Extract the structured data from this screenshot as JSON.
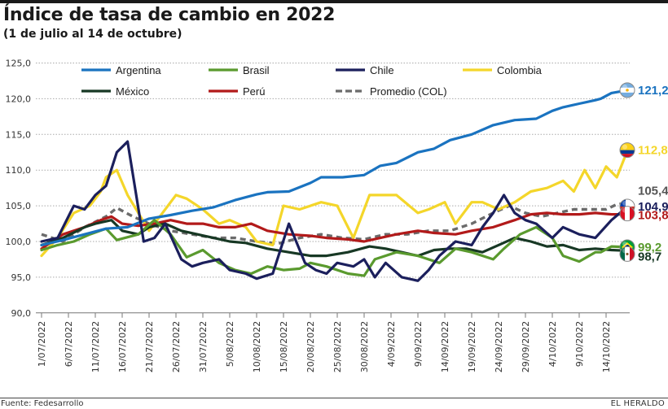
{
  "header": {
    "title": "Índice de tasa de cambio en 2022",
    "subtitle": "(1 de julio al 14 de octubre)"
  },
  "footer": {
    "source": "Fuente: Fedesarrollo",
    "brand": "EL HERALDO"
  },
  "chart_data": {
    "type": "line",
    "title": "Índice de tasa de cambio en 2022",
    "subtitle": "(1 de julio al 14 de octubre)",
    "xlabel": "",
    "ylabel": "",
    "ylim": [
      90,
      125
    ],
    "yticks": [
      90,
      95,
      100,
      105,
      110,
      115,
      120,
      125
    ],
    "ytick_labels": [
      "90,0",
      "95,0",
      "100,0",
      "105,0",
      "110,0",
      "115,0",
      "120,0",
      "125,0"
    ],
    "grid": "horizontal-dotted",
    "x_unit": "days since 1/07/2022",
    "xlim": [
      0,
      109
    ],
    "xticks": [
      0,
      5,
      10,
      15,
      20,
      25,
      30,
      35,
      40,
      45,
      50,
      55,
      60,
      65,
      70,
      75,
      80,
      85,
      90,
      95,
      100,
      105
    ],
    "xtick_labels": [
      "1/07/2022",
      "6/07/2022",
      "11/07/2022",
      "16/07/2022",
      "21/07/2022",
      "26/07/2022",
      "31/07/2022",
      "5/08/2022",
      "10/08/2022",
      "15/08/2022",
      "20/08/2022",
      "25/08/2022",
      "30/08/2022",
      "4/09/2022",
      "9/09/2022",
      "14/09/2022",
      "19/09/2022",
      "24/09/2022",
      "29/09/2022",
      "4/10/2022",
      "9/10/2022",
      "14/10/2022"
    ],
    "legend_position": "top",
    "series": [
      {
        "name": "Argentina",
        "color": "#1a73c0",
        "dash": false,
        "end_label": "121,2",
        "flag": "argentina",
        "x": [
          0,
          4,
          8,
          12,
          16,
          20,
          24,
          28,
          32,
          36,
          40,
          42,
          46,
          50,
          52,
          56,
          60,
          63,
          66,
          70,
          73,
          76,
          80,
          84,
          88,
          92,
          95,
          97,
          100,
          103,
          104,
          106,
          109
        ],
        "values": [
          99.5,
          100.2,
          101.0,
          101.8,
          102.0,
          103.2,
          103.7,
          104.3,
          104.8,
          105.8,
          106.6,
          106.9,
          107.0,
          108.2,
          109.0,
          109.0,
          109.3,
          110.6,
          111.0,
          112.5,
          113.0,
          114.2,
          115.0,
          116.3,
          117.0,
          117.2,
          118.3,
          118.8,
          119.3,
          119.8,
          120.0,
          120.8,
          121.2
        ]
      },
      {
        "name": "Brasil",
        "color": "#5a9a2e",
        "dash": false,
        "end_label": "99,2",
        "flag": "brasil",
        "x": [
          0,
          3,
          6,
          9,
          12,
          14,
          18,
          21,
          24,
          27,
          30,
          33,
          36,
          39,
          42,
          45,
          48,
          50,
          53,
          57,
          60,
          62,
          66,
          70,
          74,
          77,
          80,
          84,
          86,
          89,
          92,
          95,
          97,
          100,
          103,
          104,
          106,
          109
        ],
        "values": [
          98.8,
          99.5,
          100.0,
          101.0,
          101.8,
          100.2,
          101.0,
          103.0,
          101.0,
          97.8,
          98.8,
          97.0,
          96.0,
          95.5,
          96.5,
          96.0,
          96.2,
          97.0,
          96.5,
          95.5,
          95.2,
          97.5,
          98.5,
          98.0,
          97.0,
          99.0,
          98.5,
          97.5,
          99.0,
          101.0,
          102.0,
          100.5,
          98.0,
          97.2,
          98.5,
          98.5,
          99.3,
          99.2
        ]
      },
      {
        "name": "Chile",
        "color": "#1b1f5c",
        "dash": false,
        "end_label": "104,9",
        "flag": "chile",
        "x": [
          0,
          3,
          6,
          8,
          10,
          12,
          14,
          16,
          19,
          21,
          23,
          26,
          28,
          30,
          33,
          35,
          38,
          40,
          43,
          46,
          49,
          51,
          53,
          55,
          58,
          60,
          62,
          64,
          67,
          70,
          72,
          74,
          77,
          80,
          82,
          84,
          86,
          88,
          90,
          92,
          95,
          97,
          100,
          103,
          106,
          109
        ],
        "values": [
          100.0,
          100.5,
          105.0,
          104.5,
          106.5,
          107.8,
          112.5,
          114.0,
          100.0,
          100.5,
          102.5,
          97.5,
          96.5,
          97.0,
          97.5,
          96.0,
          95.5,
          94.8,
          95.5,
          102.5,
          97.0,
          96.0,
          95.5,
          97.0,
          96.5,
          97.5,
          95.0,
          97.0,
          95.0,
          94.5,
          96.0,
          98.0,
          100.0,
          99.5,
          102.0,
          104.0,
          106.5,
          104.0,
          103.0,
          102.5,
          100.5,
          102.0,
          101.0,
          100.5,
          103.0,
          104.9
        ]
      },
      {
        "name": "Colombia",
        "color": "#f4d62a",
        "dash": false,
        "end_label": "112,8",
        "flag": "colombia",
        "x": [
          0,
          3,
          6,
          9,
          11,
          12,
          14,
          16,
          18,
          20,
          22,
          25,
          27,
          30,
          33,
          35,
          38,
          40,
          43,
          45,
          48,
          52,
          55,
          58,
          61,
          63,
          66,
          70,
          72,
          75,
          77,
          80,
          82,
          85,
          88,
          91,
          94,
          97,
          99,
          101,
          103,
          105,
          107,
          109
        ],
        "values": [
          98.0,
          100.5,
          104.0,
          105.0,
          107.0,
          109.0,
          110.0,
          106.5,
          104.0,
          101.5,
          103.5,
          106.5,
          106.0,
          104.5,
          102.5,
          103.0,
          102.0,
          100.0,
          99.5,
          105.0,
          104.5,
          105.5,
          105.0,
          100.5,
          106.5,
          106.5,
          106.5,
          104.0,
          104.5,
          105.5,
          102.5,
          105.5,
          105.5,
          104.5,
          105.5,
          107.0,
          107.5,
          108.5,
          107.0,
          110.0,
          107.5,
          110.5,
          109.0,
          112.8
        ]
      },
      {
        "name": "México",
        "color": "#173824",
        "dash": false,
        "end_label": "98,7",
        "flag": "mexico",
        "x": [
          0,
          4,
          8,
          10,
          13,
          15,
          18,
          20,
          23,
          26,
          29,
          32,
          35,
          38,
          42,
          46,
          50,
          53,
          57,
          61,
          64,
          67,
          70,
          73,
          76,
          79,
          82,
          85,
          88,
          91,
          94,
          97,
          100,
          103,
          106,
          109
        ],
        "values": [
          99.5,
          100.5,
          102.0,
          102.5,
          103.0,
          101.5,
          101.0,
          102.0,
          102.5,
          101.5,
          101.0,
          100.5,
          100.0,
          99.8,
          99.0,
          98.5,
          98.0,
          98.0,
          98.5,
          99.3,
          99.0,
          98.5,
          98.0,
          98.8,
          99.0,
          99.0,
          98.5,
          99.5,
          100.5,
          100.0,
          99.3,
          99.5,
          98.8,
          99.0,
          98.8,
          98.7
        ]
      },
      {
        "name": "Perú",
        "color": "#b21a1a",
        "dash": false,
        "end_label": "103,8",
        "flag": "peru",
        "x": [
          0,
          4,
          8,
          11,
          13,
          15,
          18,
          21,
          24,
          27,
          30,
          33,
          36,
          39,
          42,
          46,
          50,
          53,
          57,
          60,
          63,
          66,
          70,
          73,
          77,
          80,
          84,
          88,
          91,
          94,
          97,
          100,
          103,
          106,
          109
        ],
        "values": [
          99.0,
          101.0,
          102.0,
          103.0,
          103.5,
          102.5,
          102.2,
          102.5,
          103.0,
          102.5,
          102.5,
          102.0,
          102.0,
          102.5,
          101.5,
          101.0,
          100.8,
          100.5,
          100.3,
          100.0,
          100.5,
          101.0,
          101.5,
          101.2,
          101.0,
          101.5,
          102.0,
          103.0,
          103.8,
          104.0,
          103.8,
          103.8,
          104.0,
          103.8,
          103.8
        ]
      },
      {
        "name": "Promedio (COL)",
        "color": "#6b6b6b",
        "dash": true,
        "end_label": "105,4",
        "flag": null,
        "x": [
          0,
          4,
          8,
          12,
          14,
          17,
          20,
          24,
          28,
          32,
          36,
          40,
          44,
          48,
          52,
          56,
          60,
          64,
          68,
          72,
          76,
          80,
          84,
          87,
          90,
          93,
          96,
          99,
          102,
          105,
          107,
          109
        ],
        "values": [
          101.0,
          100.0,
          102.0,
          103.5,
          104.7,
          103.5,
          102.5,
          101.5,
          101.0,
          100.5,
          100.5,
          100.0,
          99.7,
          100.5,
          101.0,
          100.5,
          100.3,
          101.0,
          101.0,
          101.5,
          101.5,
          102.5,
          104.0,
          105.0,
          104.0,
          103.5,
          104.0,
          104.5,
          104.5,
          104.5,
          105.2,
          105.4
        ]
      }
    ],
    "end_values": {
      "Argentina": "121,2",
      "Colombia": "112,8",
      "Promedio (COL)": "105,4",
      "Chile": "104,9",
      "Perú": "103,8",
      "Brasil": "99,2",
      "México": "98,7"
    }
  }
}
